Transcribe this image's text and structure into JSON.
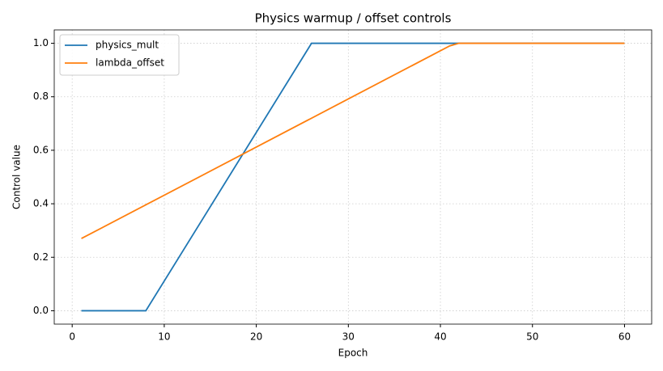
{
  "chart_data": {
    "type": "line",
    "title": "Physics warmup / offset controls",
    "xlabel": "Epoch",
    "ylabel": "Control value",
    "series": [
      {
        "name": "physics_mult",
        "color": "#1f77b4",
        "x": [
          1,
          8,
          26,
          60
        ],
        "values": [
          0,
          0,
          1,
          1
        ]
      },
      {
        "name": "lambda_offset",
        "color": "#ff7f0e",
        "x": [
          1,
          41,
          42,
          60
        ],
        "values": [
          0.27,
          0.99,
          1,
          1
        ]
      }
    ],
    "xlim": [
      -1.95,
      62.95
    ],
    "ylim": [
      -0.05,
      1.05
    ],
    "xticks": [
      0,
      10,
      20,
      30,
      40,
      50,
      60
    ],
    "yticks": [
      {
        "value": 0,
        "label": "0.0"
      },
      {
        "value": 0.2,
        "label": "0.2"
      },
      {
        "value": 0.4,
        "label": "0.4"
      },
      {
        "value": 0.6,
        "label": "0.6"
      },
      {
        "value": 0.8,
        "label": "0.8"
      },
      {
        "value": 1,
        "label": "1.0"
      }
    ],
    "grid": true,
    "legend": "upper left"
  }
}
